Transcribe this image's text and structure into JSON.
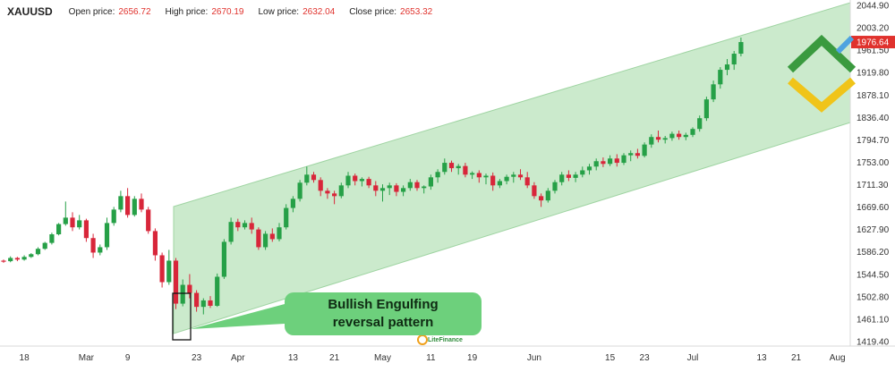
{
  "header": {
    "symbol": "XAUUSD",
    "open_label": "Open price:",
    "open_value": "2656.72",
    "high_label": "High price:",
    "high_value": "2670.19",
    "low_label": "Low price:",
    "low_value": "2632.04",
    "close_label": "Close price:",
    "close_value": "2653.32"
  },
  "annotation": {
    "line1": "Bullish Engulfing",
    "line2": "reversal pattern"
  },
  "watermark": "LiteFinance",
  "colors": {
    "up": "#26a047",
    "down": "#d8263a",
    "channel": "#cbeacc",
    "callout": "#6dd07c",
    "last_price_bg": "#e0322d",
    "logo_green": "#3a9a3f",
    "logo_yellow": "#f0c419",
    "arrow_blue": "#4ea3e0"
  },
  "chart_data": {
    "type": "candlestick",
    "title": "",
    "y_ticks": [
      2044.9,
      2003.2,
      1961.5,
      1919.8,
      1878.1,
      1836.4,
      1794.7,
      1753.0,
      1711.3,
      1669.6,
      1627.9,
      1586.2,
      1544.5,
      1502.8,
      1461.1,
      1419.4
    ],
    "y_tick_labels": [
      "2044.90",
      "2003.20",
      "1961.50",
      "1919.80",
      "1878.10",
      "1836.40",
      "1794.70",
      "1753.00",
      "1711.30",
      "1669.60",
      "1627.90",
      "1586.20",
      "1544.50",
      "1502.80",
      "1461.10",
      "1419.40"
    ],
    "ylim": [
      1412,
      2050
    ],
    "x_labels": [
      "18",
      "Mar",
      "9",
      "23",
      "Apr",
      "13",
      "21",
      "May",
      "11",
      "19",
      "Jun",
      "15",
      "23",
      "Jul",
      "13",
      "21",
      "Aug"
    ],
    "x_label_index": [
      3,
      12,
      18,
      28,
      34,
      42,
      48,
      55,
      62,
      68,
      77,
      88,
      93,
      100,
      110,
      115,
      121
    ],
    "last_price": "1976.64",
    "candles": [
      [
        1570,
        1572,
        1566,
        1569
      ],
      [
        1569,
        1578,
        1567,
        1575
      ],
      [
        1575,
        1577,
        1569,
        1572
      ],
      [
        1572,
        1580,
        1570,
        1577
      ],
      [
        1577,
        1584,
        1575,
        1582
      ],
      [
        1582,
        1595,
        1580,
        1592
      ],
      [
        1592,
        1605,
        1590,
        1603
      ],
      [
        1603,
        1622,
        1600,
        1619
      ],
      [
        1619,
        1640,
        1617,
        1638
      ],
      [
        1638,
        1680,
        1635,
        1650
      ],
      [
        1650,
        1660,
        1625,
        1632
      ],
      [
        1632,
        1655,
        1628,
        1645
      ],
      [
        1645,
        1648,
        1605,
        1612
      ],
      [
        1612,
        1620,
        1575,
        1585
      ],
      [
        1585,
        1600,
        1580,
        1595
      ],
      [
        1595,
        1650,
        1590,
        1640
      ],
      [
        1640,
        1670,
        1635,
        1665
      ],
      [
        1665,
        1700,
        1660,
        1690
      ],
      [
        1690,
        1705,
        1650,
        1655
      ],
      [
        1655,
        1690,
        1652,
        1685
      ],
      [
        1685,
        1695,
        1660,
        1665
      ],
      [
        1665,
        1670,
        1620,
        1625
      ],
      [
        1625,
        1630,
        1570,
        1580
      ],
      [
        1580,
        1585,
        1520,
        1530
      ],
      [
        1530,
        1590,
        1525,
        1570
      ],
      [
        1570,
        1575,
        1480,
        1490
      ],
      [
        1490,
        1535,
        1485,
        1525
      ],
      [
        1525,
        1545,
        1500,
        1510
      ],
      [
        1510,
        1515,
        1475,
        1484
      ],
      [
        1484,
        1500,
        1470,
        1496
      ],
      [
        1496,
        1504,
        1482,
        1486
      ],
      [
        1486,
        1546,
        1484,
        1540
      ],
      [
        1540,
        1610,
        1536,
        1605
      ],
      [
        1605,
        1650,
        1600,
        1642
      ],
      [
        1642,
        1648,
        1625,
        1632
      ],
      [
        1632,
        1645,
        1628,
        1640
      ],
      [
        1640,
        1650,
        1620,
        1628
      ],
      [
        1628,
        1632,
        1590,
        1595
      ],
      [
        1595,
        1625,
        1590,
        1620
      ],
      [
        1620,
        1630,
        1605,
        1610
      ],
      [
        1610,
        1640,
        1606,
        1632
      ],
      [
        1632,
        1675,
        1628,
        1668
      ],
      [
        1668,
        1690,
        1660,
        1685
      ],
      [
        1685,
        1720,
        1680,
        1715
      ],
      [
        1715,
        1745,
        1710,
        1730
      ],
      [
        1730,
        1735,
        1715,
        1720
      ],
      [
        1720,
        1725,
        1690,
        1700
      ],
      [
        1700,
        1705,
        1685,
        1695
      ],
      [
        1695,
        1700,
        1675,
        1690
      ],
      [
        1690,
        1715,
        1686,
        1710
      ],
      [
        1710,
        1735,
        1705,
        1728
      ],
      [
        1728,
        1732,
        1710,
        1718
      ],
      [
        1718,
        1725,
        1708,
        1722
      ],
      [
        1722,
        1726,
        1705,
        1710
      ],
      [
        1710,
        1718,
        1690,
        1700
      ],
      [
        1700,
        1712,
        1680,
        1705
      ],
      [
        1705,
        1715,
        1692,
        1710
      ],
      [
        1710,
        1714,
        1690,
        1698
      ],
      [
        1698,
        1710,
        1690,
        1705
      ],
      [
        1705,
        1722,
        1700,
        1716
      ],
      [
        1716,
        1720,
        1700,
        1705
      ],
      [
        1705,
        1710,
        1695,
        1708
      ],
      [
        1708,
        1730,
        1702,
        1725
      ],
      [
        1725,
        1740,
        1715,
        1735
      ],
      [
        1735,
        1760,
        1730,
        1752
      ],
      [
        1752,
        1756,
        1735,
        1742
      ],
      [
        1742,
        1750,
        1730,
        1746
      ],
      [
        1746,
        1752,
        1725,
        1730
      ],
      [
        1730,
        1736,
        1722,
        1733
      ],
      [
        1733,
        1738,
        1715,
        1725
      ],
      [
        1725,
        1732,
        1712,
        1728
      ],
      [
        1728,
        1734,
        1700,
        1710
      ],
      [
        1710,
        1722,
        1705,
        1718
      ],
      [
        1718,
        1730,
        1712,
        1726
      ],
      [
        1726,
        1735,
        1715,
        1730
      ],
      [
        1730,
        1740,
        1720,
        1725
      ],
      [
        1725,
        1735,
        1705,
        1710
      ],
      [
        1710,
        1716,
        1685,
        1690
      ],
      [
        1690,
        1695,
        1670,
        1682
      ],
      [
        1682,
        1705,
        1678,
        1700
      ],
      [
        1700,
        1720,
        1695,
        1716
      ],
      [
        1716,
        1735,
        1710,
        1730
      ],
      [
        1730,
        1738,
        1718,
        1724
      ],
      [
        1724,
        1735,
        1716,
        1730
      ],
      [
        1730,
        1745,
        1725,
        1738
      ],
      [
        1738,
        1750,
        1730,
        1745
      ],
      [
        1745,
        1760,
        1738,
        1755
      ],
      [
        1755,
        1762,
        1744,
        1750
      ],
      [
        1750,
        1766,
        1746,
        1760
      ],
      [
        1760,
        1768,
        1745,
        1752
      ],
      [
        1752,
        1770,
        1748,
        1766
      ],
      [
        1766,
        1775,
        1755,
        1770
      ],
      [
        1770,
        1778,
        1760,
        1765
      ],
      [
        1765,
        1790,
        1762,
        1786
      ],
      [
        1786,
        1805,
        1780,
        1800
      ],
      [
        1800,
        1812,
        1790,
        1795
      ],
      [
        1795,
        1802,
        1788,
        1798
      ],
      [
        1798,
        1810,
        1793,
        1806
      ],
      [
        1806,
        1812,
        1795,
        1800
      ],
      [
        1800,
        1808,
        1794,
        1804
      ],
      [
        1804,
        1818,
        1800,
        1815
      ],
      [
        1815,
        1840,
        1810,
        1835
      ],
      [
        1835,
        1875,
        1830,
        1870
      ],
      [
        1870,
        1905,
        1865,
        1898
      ],
      [
        1898,
        1930,
        1890,
        1925
      ],
      [
        1925,
        1945,
        1915,
        1935
      ],
      [
        1935,
        1960,
        1925,
        1955
      ],
      [
        1955,
        1985,
        1950,
        1976.64
      ]
    ]
  }
}
